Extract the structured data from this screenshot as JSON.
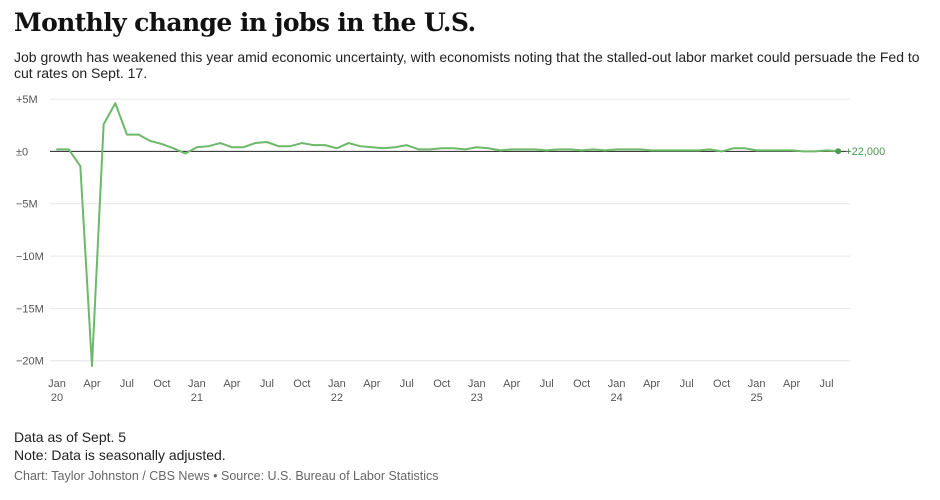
{
  "header": {
    "title": "Monthly change in jobs in the U.S.",
    "subtitle": "Job growth has weakened this year amid economic uncertainty, with economists noting that the stalled-out labor market could persuade the Fed to cut rates on Sept. 17."
  },
  "footer": {
    "data_as_of": "Data as of Sept. 5",
    "note": "Note: Data is seasonally adjusted.",
    "credit": "Chart: Taylor Johnston / CBS News • Source: U.S. Bureau of Labor Statistics"
  },
  "colors": {
    "line": "#6db86a",
    "label": "#4f9a4c",
    "grid": "#e6e6e6",
    "zero": "#222222"
  },
  "chart_data": {
    "type": "line",
    "title": "Monthly change in jobs in the U.S.",
    "xlabel": "",
    "ylabel": "",
    "unit": "millions of jobs",
    "ylim": [
      -20.6,
      5.2
    ],
    "y_ticks": [
      {
        "value": 5,
        "label": "+5M"
      },
      {
        "value": 0,
        "label": "±0"
      },
      {
        "value": -5,
        "label": "−5M"
      },
      {
        "value": -10,
        "label": "−10M"
      },
      {
        "value": -15,
        "label": "−15M"
      },
      {
        "value": -20,
        "label": "−20M"
      }
    ],
    "x_ticks": [
      {
        "index": 0,
        "label": "Jan",
        "year": "20"
      },
      {
        "index": 3,
        "label": "Apr"
      },
      {
        "index": 6,
        "label": "Jul"
      },
      {
        "index": 9,
        "label": "Oct"
      },
      {
        "index": 12,
        "label": "Jan",
        "year": "21"
      },
      {
        "index": 15,
        "label": "Apr"
      },
      {
        "index": 18,
        "label": "Jul"
      },
      {
        "index": 21,
        "label": "Oct"
      },
      {
        "index": 24,
        "label": "Jan",
        "year": "22"
      },
      {
        "index": 27,
        "label": "Apr"
      },
      {
        "index": 30,
        "label": "Jul"
      },
      {
        "index": 33,
        "label": "Oct"
      },
      {
        "index": 36,
        "label": "Jan",
        "year": "23"
      },
      {
        "index": 39,
        "label": "Apr"
      },
      {
        "index": 42,
        "label": "Jul"
      },
      {
        "index": 45,
        "label": "Oct"
      },
      {
        "index": 48,
        "label": "Jan",
        "year": "24"
      },
      {
        "index": 51,
        "label": "Apr"
      },
      {
        "index": 54,
        "label": "Jul"
      },
      {
        "index": 57,
        "label": "Oct"
      },
      {
        "index": 60,
        "label": "Jan",
        "year": "25"
      },
      {
        "index": 63,
        "label": "Apr"
      },
      {
        "index": 66,
        "label": "Jul"
      }
    ],
    "series": [
      {
        "name": "Monthly change in jobs",
        "start": "Jan 2020",
        "values": [
          0.2,
          0.2,
          -1.4,
          -20.5,
          2.6,
          4.6,
          1.6,
          1.6,
          1.0,
          0.7,
          0.3,
          -0.2,
          0.4,
          0.5,
          0.8,
          0.4,
          0.4,
          0.8,
          0.9,
          0.5,
          0.5,
          0.8,
          0.6,
          0.6,
          0.3,
          0.8,
          0.5,
          0.4,
          0.3,
          0.4,
          0.6,
          0.2,
          0.2,
          0.3,
          0.3,
          0.2,
          0.4,
          0.3,
          0.1,
          0.2,
          0.2,
          0.2,
          0.1,
          0.2,
          0.2,
          0.1,
          0.2,
          0.1,
          0.2,
          0.2,
          0.2,
          0.1,
          0.1,
          0.1,
          0.1,
          0.1,
          0.2,
          0.0,
          0.3,
          0.3,
          0.1,
          0.1,
          0.1,
          0.1,
          0.0,
          0.0,
          0.1,
          0.022
        ]
      }
    ],
    "end_label": "+22,000"
  }
}
